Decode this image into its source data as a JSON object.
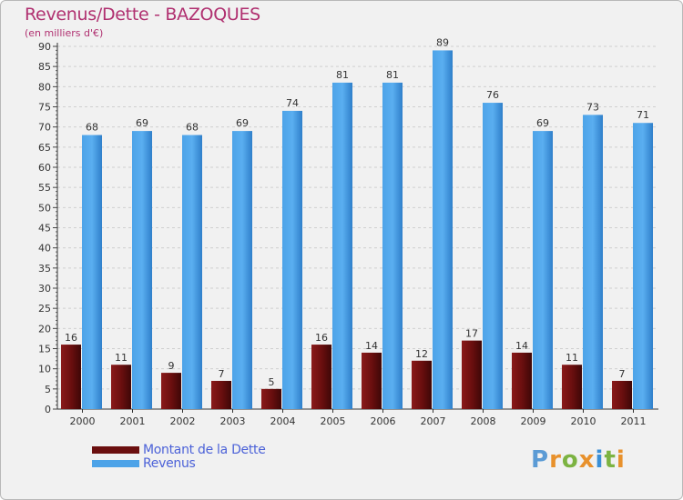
{
  "title": "Revenus/Dette - BAZOQUES",
  "subtitle": "(en milliers d'€)",
  "colors": {
    "dette": "#6b0f0f",
    "revenus": "#4da3e8",
    "accent_title": "#b03070"
  },
  "chart_data": {
    "type": "bar",
    "categories": [
      "2000",
      "2001",
      "2002",
      "2003",
      "2004",
      "2005",
      "2006",
      "2007",
      "2008",
      "2009",
      "2010",
      "2011"
    ],
    "series": [
      {
        "name": "Montant de la Dette",
        "values": [
          16,
          11,
          9,
          7,
          5,
          16,
          14,
          12,
          17,
          14,
          11,
          7
        ]
      },
      {
        "name": "Revenus",
        "values": [
          68,
          69,
          68,
          69,
          74,
          81,
          81,
          89,
          76,
          69,
          73,
          71
        ]
      }
    ],
    "ylim": [
      0,
      90
    ],
    "ytick_step": 5,
    "grid": true,
    "legend_position": "bottom-left"
  },
  "legend": {
    "items": [
      {
        "label": "Montant de la Dette"
      },
      {
        "label": "Revenus"
      }
    ]
  },
  "logo": {
    "text": "Proxiti"
  }
}
